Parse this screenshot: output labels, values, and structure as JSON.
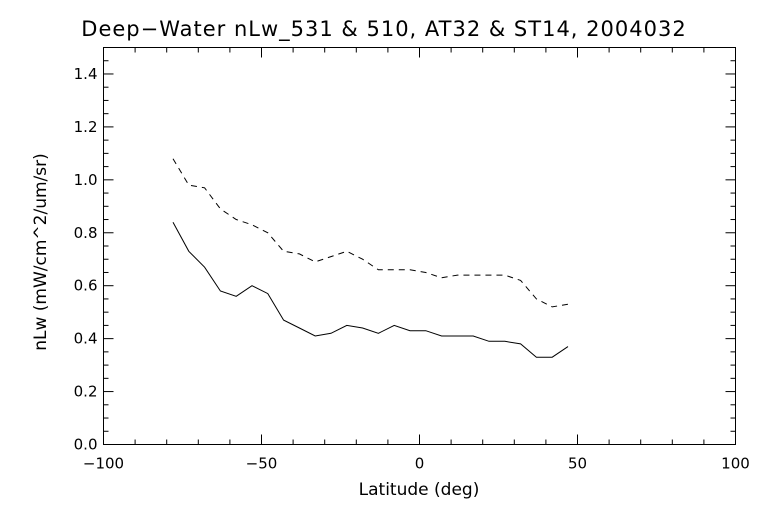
{
  "chart_data": {
    "type": "line",
    "title": "Deep−Water nLw_531 & 510, AT32 & ST14, 2004032",
    "xlabel": "Latitude (deg)",
    "ylabel": "nLw (mW/cm^2/um/sr)",
    "xlim": [
      -100,
      100
    ],
    "ylim": [
      0.0,
      1.5
    ],
    "xticks": [
      -100,
      -50,
      0,
      50,
      100
    ],
    "xtick_labels": [
      "−100",
      "−50",
      "0",
      "50",
      "100"
    ],
    "yticks": [
      0.0,
      0.2,
      0.4,
      0.6,
      0.8,
      1.0,
      1.2,
      1.4
    ],
    "ytick_labels": [
      "0.0",
      "0.2",
      "0.4",
      "0.6",
      "0.8",
      "1.0",
      "1.2",
      "1.4"
    ],
    "grid": false,
    "legend": "none",
    "series": [
      {
        "style": "dashed",
        "color": "#000000",
        "x": [
          -78,
          -73,
          -68,
          -63,
          -58,
          -53,
          -48,
          -43,
          -38,
          -33,
          -28,
          -23,
          -18,
          -13,
          -8,
          -3,
          2,
          7,
          12,
          17,
          22,
          27,
          32,
          37,
          42,
          47
        ],
        "y": [
          1.08,
          0.98,
          0.97,
          0.89,
          0.85,
          0.83,
          0.8,
          0.73,
          0.72,
          0.69,
          0.71,
          0.73,
          0.7,
          0.66,
          0.66,
          0.66,
          0.65,
          0.63,
          0.64,
          0.64,
          0.64,
          0.64,
          0.62,
          0.55,
          0.52,
          0.53
        ]
      },
      {
        "style": "solid",
        "color": "#000000",
        "x": [
          -78,
          -73,
          -68,
          -63,
          -58,
          -53,
          -48,
          -43,
          -38,
          -33,
          -28,
          -23,
          -18,
          -13,
          -8,
          -3,
          2,
          7,
          12,
          17,
          22,
          27,
          32,
          37,
          42,
          47
        ],
        "y": [
          0.84,
          0.73,
          0.67,
          0.58,
          0.56,
          0.6,
          0.57,
          0.47,
          0.44,
          0.41,
          0.42,
          0.45,
          0.44,
          0.42,
          0.45,
          0.43,
          0.43,
          0.41,
          0.41,
          0.41,
          0.39,
          0.39,
          0.38,
          0.33,
          0.33,
          0.37
        ]
      }
    ]
  }
}
